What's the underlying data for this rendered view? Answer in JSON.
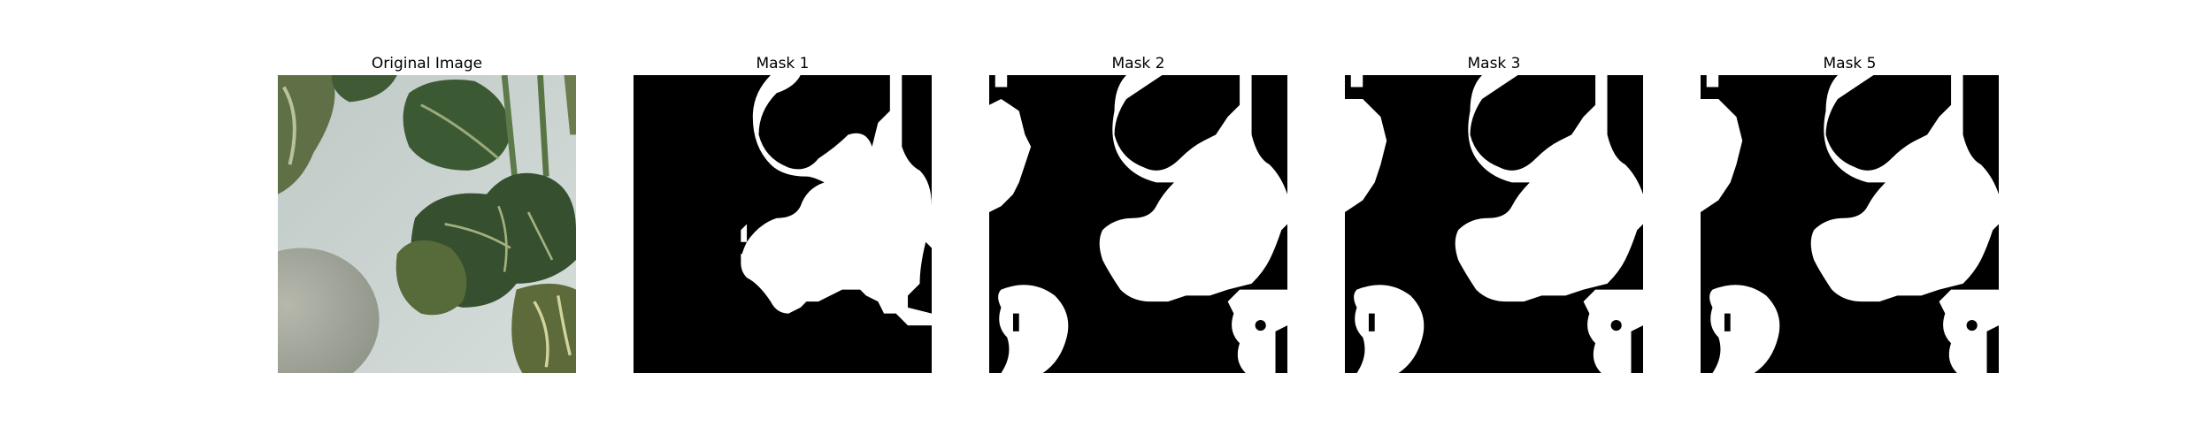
{
  "figure": {
    "panels": [
      {
        "title": "Original Image",
        "kind": "photo"
      },
      {
        "title": "Mask 1",
        "kind": "mask",
        "variant": 1
      },
      {
        "title": "Mask 2",
        "kind": "mask",
        "variant": 2
      },
      {
        "title": "Mask 3",
        "kind": "mask",
        "variant": 3
      },
      {
        "title": "Mask 5",
        "kind": "mask",
        "variant": 3
      }
    ],
    "colors": {
      "background": "#ffffff",
      "mask_foreground": "#ffffff",
      "mask_background": "#000000",
      "leaf_dark": "#2f4d2c",
      "leaf_mid": "#4d6b3f",
      "leaf_light": "#7c8a55",
      "surface": "#c8d2cf",
      "surface_shadow": "#a7ab9f"
    }
  }
}
